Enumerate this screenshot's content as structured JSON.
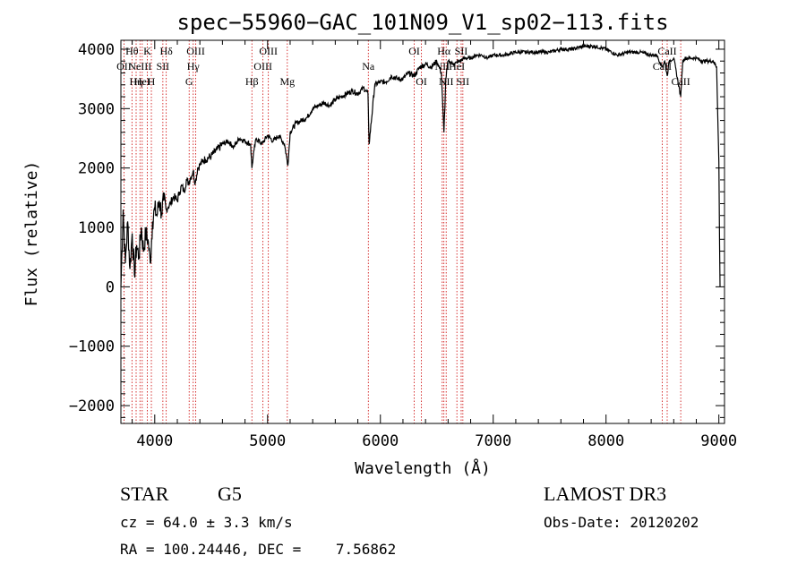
{
  "chart_data": {
    "type": "line",
    "title": "spec−55960−GAC_101N09_V1_sp02−113.fits",
    "xlabel": "Wavelength (Å)",
    "ylabel": "Flux (relative)",
    "xlim": [
      3700,
      9050
    ],
    "ylim": [
      -2300,
      4150
    ],
    "xticks": [
      4000,
      5000,
      6000,
      7000,
      8000,
      9000
    ],
    "xtick_labels": [
      "4000",
      "5000",
      "6000",
      "7000",
      "8000",
      "9000"
    ],
    "yticks": [
      -2000,
      -1000,
      0,
      1000,
      2000,
      3000,
      4000
    ],
    "ytick_labels": [
      "−2000",
      "−1000",
      "0",
      "1000",
      "2000",
      "3000",
      "4000"
    ],
    "grid": false,
    "series": [
      {
        "name": "flux",
        "color": "#000000",
        "x": [
          3700,
          3720,
          3740,
          3760,
          3780,
          3800,
          3820,
          3840,
          3860,
          3880,
          3900,
          3920,
          3940,
          3960,
          3980,
          4000,
          4020,
          4040,
          4060,
          4080,
          4100,
          4120,
          4140,
          4160,
          4180,
          4200,
          4220,
          4240,
          4260,
          4280,
          4300,
          4320,
          4340,
          4360,
          4380,
          4400,
          4420,
          4450,
          4500,
          4550,
          4600,
          4650,
          4700,
          4750,
          4800,
          4850,
          4861,
          4880,
          4900,
          4950,
          5000,
          5050,
          5100,
          5150,
          5180,
          5200,
          5250,
          5300,
          5350,
          5400,
          5450,
          5500,
          5550,
          5600,
          5650,
          5700,
          5750,
          5800,
          5850,
          5890,
          5900,
          5950,
          6000,
          6050,
          6100,
          6150,
          6200,
          6250,
          6300,
          6350,
          6400,
          6450,
          6500,
          6540,
          6563,
          6580,
          6600,
          6650,
          6700,
          6750,
          6800,
          6850,
          6900,
          6950,
          7000,
          7100,
          7200,
          7300,
          7400,
          7500,
          7600,
          7700,
          7800,
          7900,
          8000,
          8100,
          8200,
          8300,
          8400,
          8450,
          8498,
          8520,
          8542,
          8560,
          8600,
          8662,
          8680,
          8700,
          8750,
          8800,
          8850,
          8900,
          8950,
          8980,
          9000,
          9010
        ],
        "values": [
          0,
          1300,
          400,
          1100,
          300,
          900,
          200,
          700,
          500,
          1000,
          600,
          900,
          800,
          400,
          1100,
          1300,
          1200,
          1450,
          1250,
          1450,
          1300,
          1350,
          1400,
          1500,
          1500,
          1450,
          1600,
          1700,
          1600,
          1800,
          1750,
          1850,
          1950,
          1750,
          2000,
          2050,
          2100,
          2150,
          2200,
          2300,
          2400,
          2450,
          2350,
          2500,
          2450,
          2400,
          2000,
          2300,
          2500,
          2400,
          2550,
          2450,
          2550,
          2400,
          2050,
          2600,
          2750,
          2800,
          2850,
          3000,
          3050,
          3100,
          3050,
          3150,
          3200,
          3250,
          3300,
          3250,
          3350,
          3250,
          2400,
          3400,
          3450,
          3450,
          3550,
          3500,
          3500,
          3600,
          3550,
          3700,
          3750,
          3700,
          3800,
          3600,
          2600,
          3500,
          3800,
          3750,
          3800,
          3850,
          3850,
          3900,
          3900,
          3850,
          3900,
          3900,
          3950,
          3950,
          3950,
          3950,
          4000,
          4000,
          4050,
          4050,
          4000,
          3900,
          3950,
          3950,
          3900,
          3900,
          3700,
          3800,
          3550,
          3800,
          3850,
          3200,
          3800,
          3850,
          3850,
          3850,
          3800,
          3800,
          3800,
          3700,
          2100,
          0
        ]
      }
    ],
    "line_markers": [
      {
        "wavelength": 3727,
        "label": "OII",
        "row": 2
      },
      {
        "wavelength": 3798,
        "label": "Hθ",
        "row": 1
      },
      {
        "wavelength": 3835,
        "label": "Hη",
        "row": 3
      },
      {
        "wavelength": 3869,
        "label": "NeIII",
        "row": 2
      },
      {
        "wavelength": 3889,
        "label": "HeI",
        "row": 3
      },
      {
        "wavelength": 3934,
        "label": "K",
        "row": 1
      },
      {
        "wavelength": 3970,
        "label": "H",
        "row": 3
      },
      {
        "wavelength": 4072,
        "label": "SII",
        "row": 2
      },
      {
        "wavelength": 4102,
        "label": "Hδ",
        "row": 1
      },
      {
        "wavelength": 4305,
        "label": "G",
        "row": 3
      },
      {
        "wavelength": 4341,
        "label": "Hγ",
        "row": 2
      },
      {
        "wavelength": 4363,
        "label": "OIII",
        "row": 1
      },
      {
        "wavelength": 4861,
        "label": "Hβ",
        "row": 3
      },
      {
        "wavelength": 4959,
        "label": "OIII",
        "row": 2
      },
      {
        "wavelength": 5007,
        "label": "OIII",
        "row": 1
      },
      {
        "wavelength": 5175,
        "label": "Mg",
        "row": 3
      },
      {
        "wavelength": 5893,
        "label": "Na",
        "row": 2
      },
      {
        "wavelength": 6300,
        "label": "OI",
        "row": 1
      },
      {
        "wavelength": 6364,
        "label": "OI",
        "row": 3
      },
      {
        "wavelength": 6548,
        "label": "NII",
        "row": 2
      },
      {
        "wavelength": 6563,
        "label": "Hα",
        "row": 1
      },
      {
        "wavelength": 6583,
        "label": "NII",
        "row": 3
      },
      {
        "wavelength": 6678,
        "label": "HeI",
        "row": 2
      },
      {
        "wavelength": 6716,
        "label": "SII",
        "row": 1
      },
      {
        "wavelength": 6731,
        "label": "SII",
        "row": 3
      },
      {
        "wavelength": 8498,
        "label": "CaII",
        "row": 2
      },
      {
        "wavelength": 8542,
        "label": "CaII",
        "row": 1
      },
      {
        "wavelength": 8662,
        "label": "CaII",
        "row": 3
      }
    ]
  },
  "info": {
    "object_class": "STAR",
    "subclass": "G5",
    "survey": "LAMOST DR3",
    "redshift": "cz = 64.0 ± 3.3 km/s",
    "obs_date": "Obs-Date: 20120202",
    "coords": "RA = 100.24446, DEC =    7.56862"
  },
  "colors": {
    "spectrum": "#000000",
    "line_marker": "#cc0000",
    "axis": "#000000"
  }
}
